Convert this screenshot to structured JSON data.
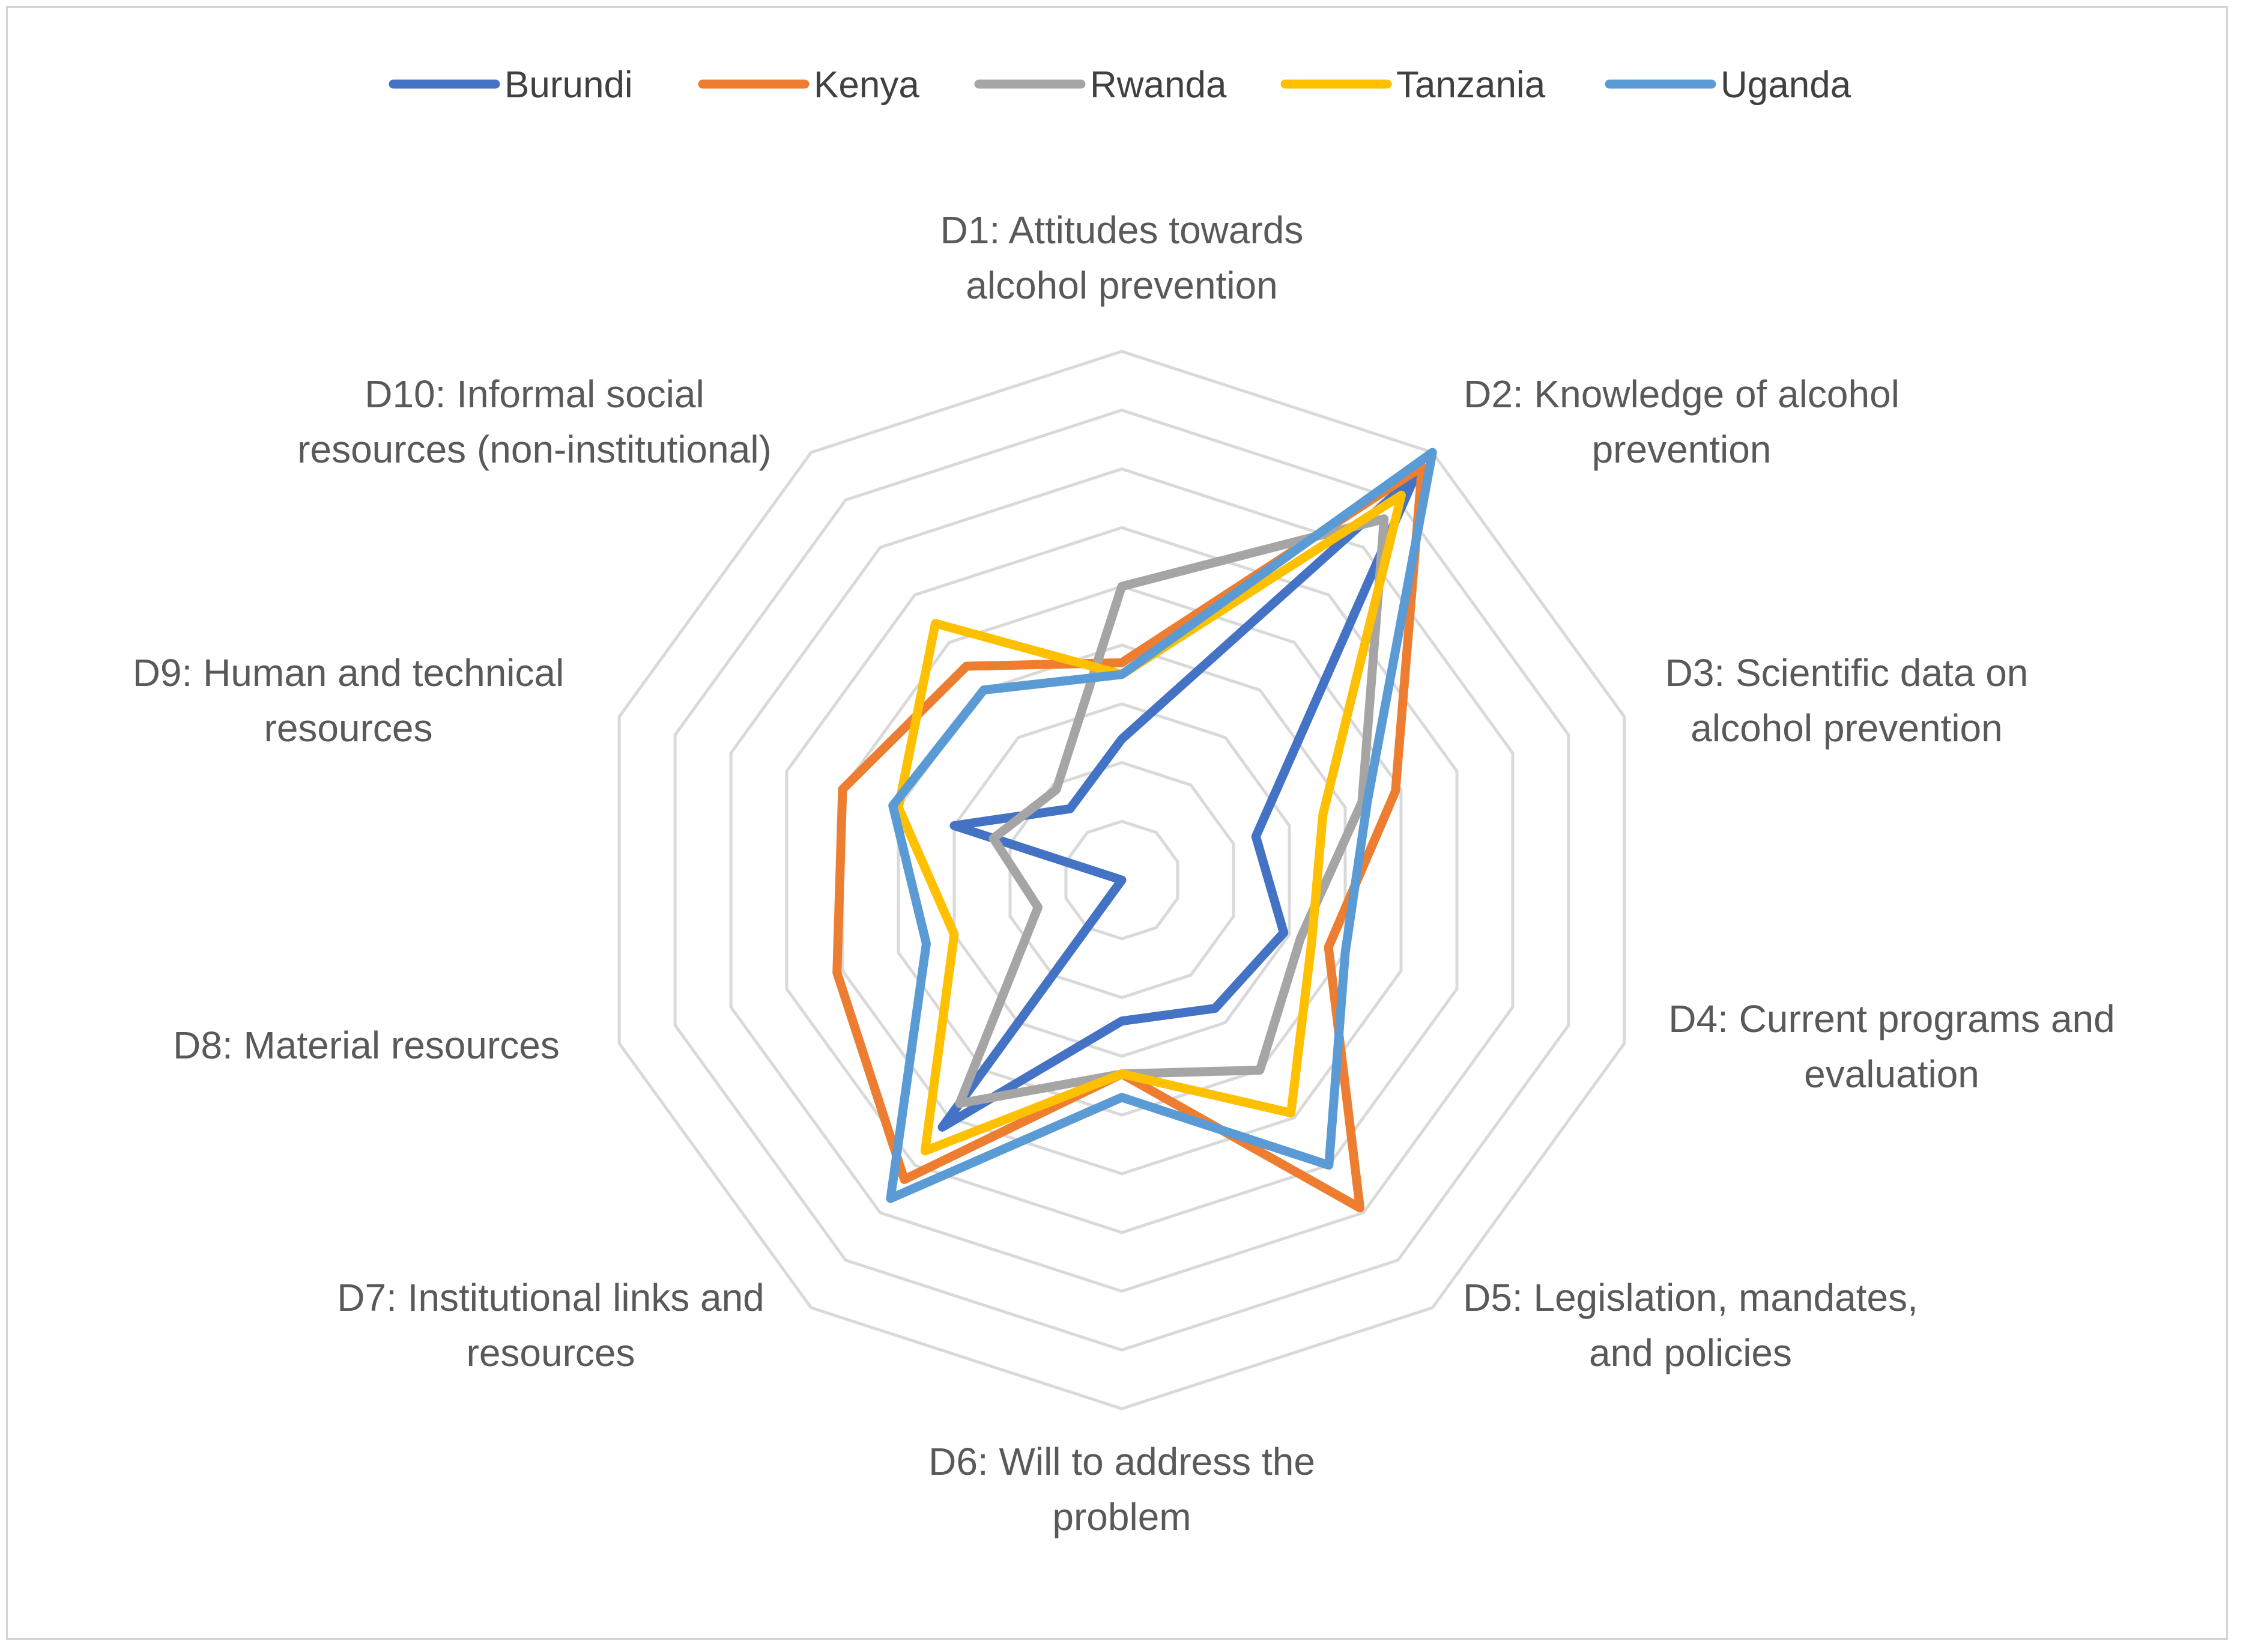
{
  "chart_data": {
    "type": "radar",
    "title": "",
    "axes": [
      [
        "D1: Attitudes towards",
        "alcohol prevention"
      ],
      [
        "D2: Knowledge of alcohol",
        "prevention"
      ],
      [
        "D3: Scientific data on",
        "alcohol prevention"
      ],
      [
        "D4: Current programs and",
        "evaluation"
      ],
      [
        "D5: Legislation, mandates,",
        "and policies"
      ],
      [
        "D6: Will to address the",
        "problem"
      ],
      [
        "D7: Institutional links and",
        "resources"
      ],
      [
        "D8: Material resources"
      ],
      [
        "D9: Human and technical",
        "resources"
      ],
      [
        "D10: Informal social",
        "resources (non-institutional)"
      ]
    ],
    "rmin": 0,
    "rmax": 9,
    "rings": 9,
    "legend_position": "top",
    "series": [
      {
        "name": "Burundi",
        "color": "#4472C4",
        "values": [
          2.4,
          8.5,
          2.4,
          2.9,
          2.7,
          2.4,
          5.2,
          0.0,
          3.0,
          1.5
        ]
      },
      {
        "name": "Kenya",
        "color": "#ED7D31",
        "values": [
          3.7,
          8.7,
          4.9,
          3.7,
          6.9,
          3.3,
          6.3,
          5.1,
          5.0,
          4.5
        ]
      },
      {
        "name": "Rwanda",
        "color": "#A5A5A5",
        "values": [
          5.0,
          7.6,
          4.3,
          3.2,
          4.0,
          3.3,
          4.7,
          1.5,
          2.3,
          1.9
        ]
      },
      {
        "name": "Tanzania",
        "color": "#FFC000",
        "values": [
          3.5,
          8.1,
          3.6,
          3.4,
          4.9,
          3.3,
          5.7,
          3.0,
          4.0,
          5.4
        ]
      },
      {
        "name": "Uganda",
        "color": "#5B9BD5",
        "values": [
          3.5,
          9.0,
          4.4,
          4.0,
          6.0,
          3.7,
          6.7,
          3.5,
          4.1,
          4.0
        ]
      }
    ]
  }
}
